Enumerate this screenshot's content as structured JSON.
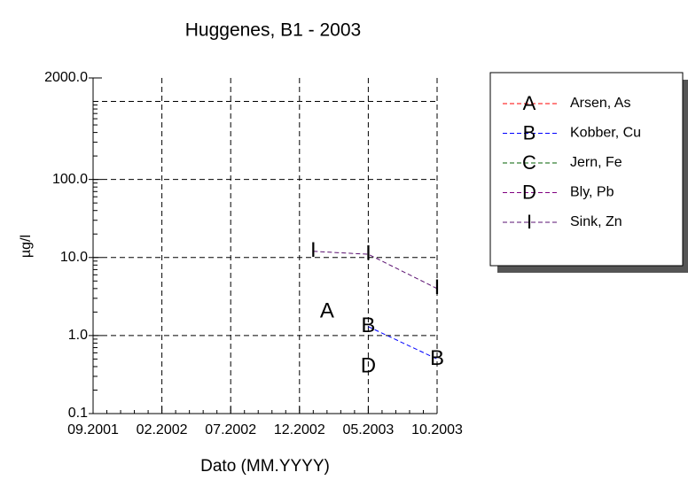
{
  "chart_data": {
    "type": "line",
    "title": "Huggenes, B1 - 2003",
    "xlabel": "Dato (MM.YYYY)",
    "ylabel": "µg/l",
    "xlim": [
      "09.2001",
      "10.2003"
    ],
    "xticks": [
      "09.2001",
      "02.2002",
      "07.2002",
      "12.2002",
      "05.2003",
      "10.2003"
    ],
    "ylim": [
      0.1,
      2000
    ],
    "log_y": true,
    "yticks": [
      0.1,
      {
        "value": 1,
        "label": "1.0"
      },
      {
        "value": 10,
        "label": "10.0"
      },
      {
        "value": 100,
        "label": "100.0"
      },
      {
        "value": 2000,
        "label": "2000.0"
      }
    ],
    "ygrid": [
      1,
      10,
      100,
      1000
    ],
    "grid": true,
    "legend": "right",
    "series": [
      {
        "name": "Arsen, As",
        "marker": "A",
        "color": "#ff0000",
        "x": [
          "02.2003"
        ],
        "values": [
          2
        ]
      },
      {
        "name": "Kobber, Cu",
        "marker": "B",
        "color": "#0000ff",
        "x": [
          "05.2003",
          "10.2003"
        ],
        "values": [
          1.3,
          0.5
        ]
      },
      {
        "name": "Jern, Fe",
        "marker": "C",
        "color": "#006000",
        "x": [],
        "values": []
      },
      {
        "name": "Bly, Pb",
        "marker": "D",
        "color": "#800080",
        "x": [
          "05.2003"
        ],
        "values": [
          0.4
        ]
      },
      {
        "name": "Sink, Zn",
        "marker": "I",
        "color": "#5a1070",
        "x": [
          "01.2003",
          "05.2003",
          "10.2003"
        ],
        "values": [
          12,
          11,
          4
        ]
      }
    ]
  }
}
